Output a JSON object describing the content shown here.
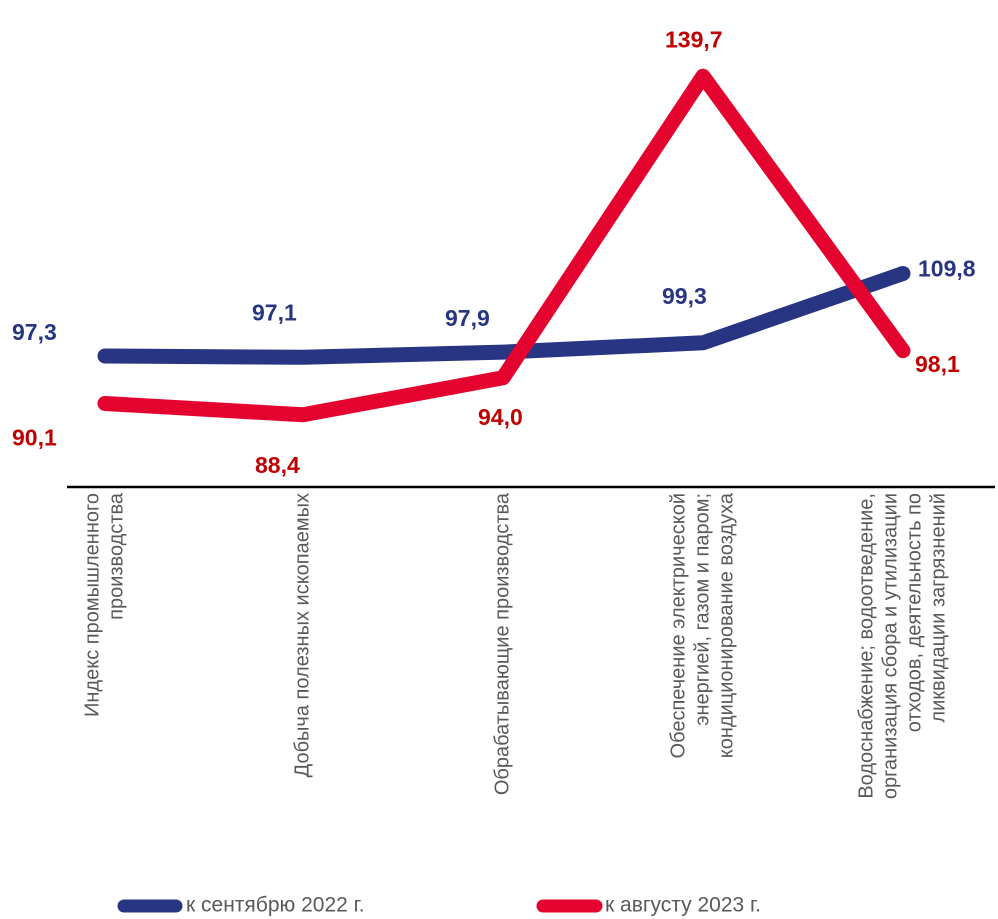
{
  "chart_data": {
    "type": "line",
    "categories": [
      [
        "Индекс промышленного",
        "производства"
      ],
      [
        "Добыча полезных ископаемых"
      ],
      [
        "Обрабатывающие производства"
      ],
      [
        "Обеспечение электрической",
        "энергией, газом и паром;",
        "кондиционирование  воздуха"
      ],
      [
        "Водоснабжение; водоотведение,",
        "организация сбора и утилизации",
        "отходов, деятельность по",
        "ликвидации загрязнений"
      ]
    ],
    "series": [
      {
        "name": "к сентябрю 2022 г.",
        "color": "#283583",
        "values": [
          97.3,
          97.1,
          97.9,
          99.3,
          109.8
        ],
        "labels": [
          "97,3",
          "97,1",
          "97,9",
          "99,3",
          "109,8"
        ]
      },
      {
        "name": "к августу 2023 г.",
        "color": "#E4032E",
        "label_color": "#C00000",
        "values": [
          90.1,
          88.4,
          94.0,
          139.7,
          98.1
        ],
        "labels": [
          "90,1",
          "88,4",
          "94,0",
          "139,7",
          "98,1"
        ]
      }
    ],
    "legend": "bottom",
    "grid": false
  }
}
